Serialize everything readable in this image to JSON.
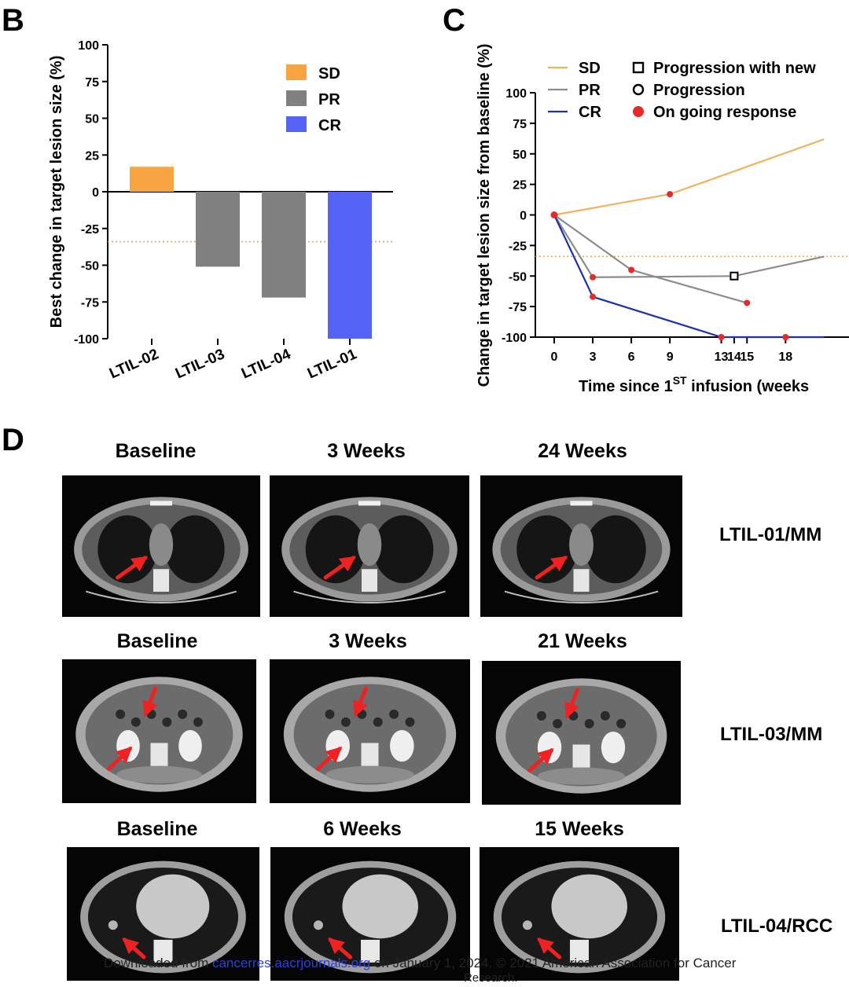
{
  "panels": {
    "b": "B",
    "c": "C",
    "d": "D"
  },
  "chart_data": [
    {
      "type": "bar",
      "panel": "B",
      "ylabel": "Best change in target lesion size (%)",
      "xlabel": "",
      "categories": [
        "LTIL-02",
        "LTIL-03",
        "LTIL-04",
        "LTIL-01"
      ],
      "values": [
        17,
        -51,
        -72,
        -100
      ],
      "response": [
        "SD",
        "PR",
        "PR",
        "CR"
      ],
      "ylim": [
        -100,
        100
      ],
      "yticks": [
        100,
        75,
        50,
        25,
        0,
        -25,
        -50,
        -75,
        -100
      ],
      "ytick_labels": [
        "100",
        "75",
        "50",
        "25",
        "0",
        "-25",
        "-50",
        "-75",
        "-100"
      ],
      "threshold": -34,
      "legend": [
        {
          "label": "SD",
          "color": "#f7a443"
        },
        {
          "label": "PR",
          "color": "#808080"
        },
        {
          "label": "CR",
          "color": "#5563f5"
        }
      ],
      "legend_position": "top-right",
      "grid": false
    },
    {
      "type": "line",
      "panel": "C",
      "ylabel": "Change in target lesion size from baseline (%)",
      "xlabel": "Time since 1",
      "xlabel_sup": "ST",
      "xlabel_rest": " infusion (weeks",
      "xticks": [
        0,
        3,
        6,
        9,
        13,
        14,
        15,
        18
      ],
      "xtick_labels": [
        "0",
        "3",
        "6",
        "9",
        "13",
        "14",
        "15",
        "18"
      ],
      "yticks": [
        100,
        75,
        50,
        25,
        0,
        -25,
        -50,
        -75,
        -100
      ],
      "ytick_labels": [
        "100",
        "75",
        "50",
        "25",
        "0",
        "-25",
        "-50",
        "-75",
        "-100"
      ],
      "ylim": [
        -100,
        100
      ],
      "threshold": -34,
      "series": [
        {
          "name": "SD",
          "color": "#f2b35f",
          "points": [
            [
              0,
              0
            ],
            [
              9,
              17
            ],
            [
              21,
              62
            ]
          ],
          "markers": [
            {
              "x": 9,
              "y": 17,
              "kind": "ongoing"
            }
          ]
        },
        {
          "name": "PR",
          "color": "#8c8c8c",
          "points": [
            [
              0,
              0
            ],
            [
              3,
              -51
            ],
            [
              14,
              -50
            ],
            [
              21,
              -34
            ]
          ],
          "markers": [
            {
              "x": 3,
              "y": -51,
              "kind": "ongoing"
            },
            {
              "x": 14,
              "y": -50,
              "kind": "progression-new"
            }
          ]
        },
        {
          "name": "PR",
          "color": "#8c8c8c",
          "points": [
            [
              0,
              0
            ],
            [
              6,
              -45
            ],
            [
              15,
              -72
            ]
          ],
          "markers": [
            {
              "x": 6,
              "y": -45,
              "kind": "ongoing"
            },
            {
              "x": 15,
              "y": -72,
              "kind": "ongoing"
            }
          ]
        },
        {
          "name": "CR",
          "color": "#1e2fb0",
          "points": [
            [
              0,
              0
            ],
            [
              3,
              -67
            ],
            [
              13,
              -100
            ],
            [
              21,
              -100
            ]
          ],
          "markers": [
            {
              "x": 3,
              "y": -67,
              "kind": "ongoing"
            },
            {
              "x": 13,
              "y": -100,
              "kind": "ongoing"
            },
            {
              "x": 18,
              "y": -100,
              "kind": "ongoing"
            }
          ]
        }
      ],
      "legend_lines": [
        {
          "label": "SD",
          "color": "#f2b35f"
        },
        {
          "label": "PR",
          "color": "#8c8c8c"
        },
        {
          "label": "CR",
          "color": "#1e2fb0"
        }
      ],
      "legend_markers": [
        {
          "label": "Progression with new",
          "symbol": "square"
        },
        {
          "label": "Progression",
          "symbol": "circle"
        },
        {
          "label": "On going response",
          "symbol": "dot"
        }
      ],
      "marker_color": "#e52a2a",
      "grid": false
    }
  ],
  "ct": {
    "rows": [
      {
        "case": "LTIL-01/MM",
        "labels": [
          "Baseline",
          "3 Weeks",
          "24 Weeks"
        ],
        "kind": "chest"
      },
      {
        "case": "LTIL-03/MM",
        "labels": [
          "Baseline",
          "3 Weeks",
          "21 Weeks"
        ],
        "kind": "abdomen"
      },
      {
        "case": "LTIL-04/RCC",
        "labels": [
          "Baseline",
          "6 Weeks",
          "15 Weeks"
        ],
        "kind": "heart"
      }
    ]
  },
  "footer": {
    "pre": "Downloaded from ",
    "link": "cancerres.aacrjournals.org",
    "mid": " on ",
    "date": "January 1, 2024",
    "copyright": ". © 2021 American Association for Cancer",
    "line2": "Research."
  }
}
